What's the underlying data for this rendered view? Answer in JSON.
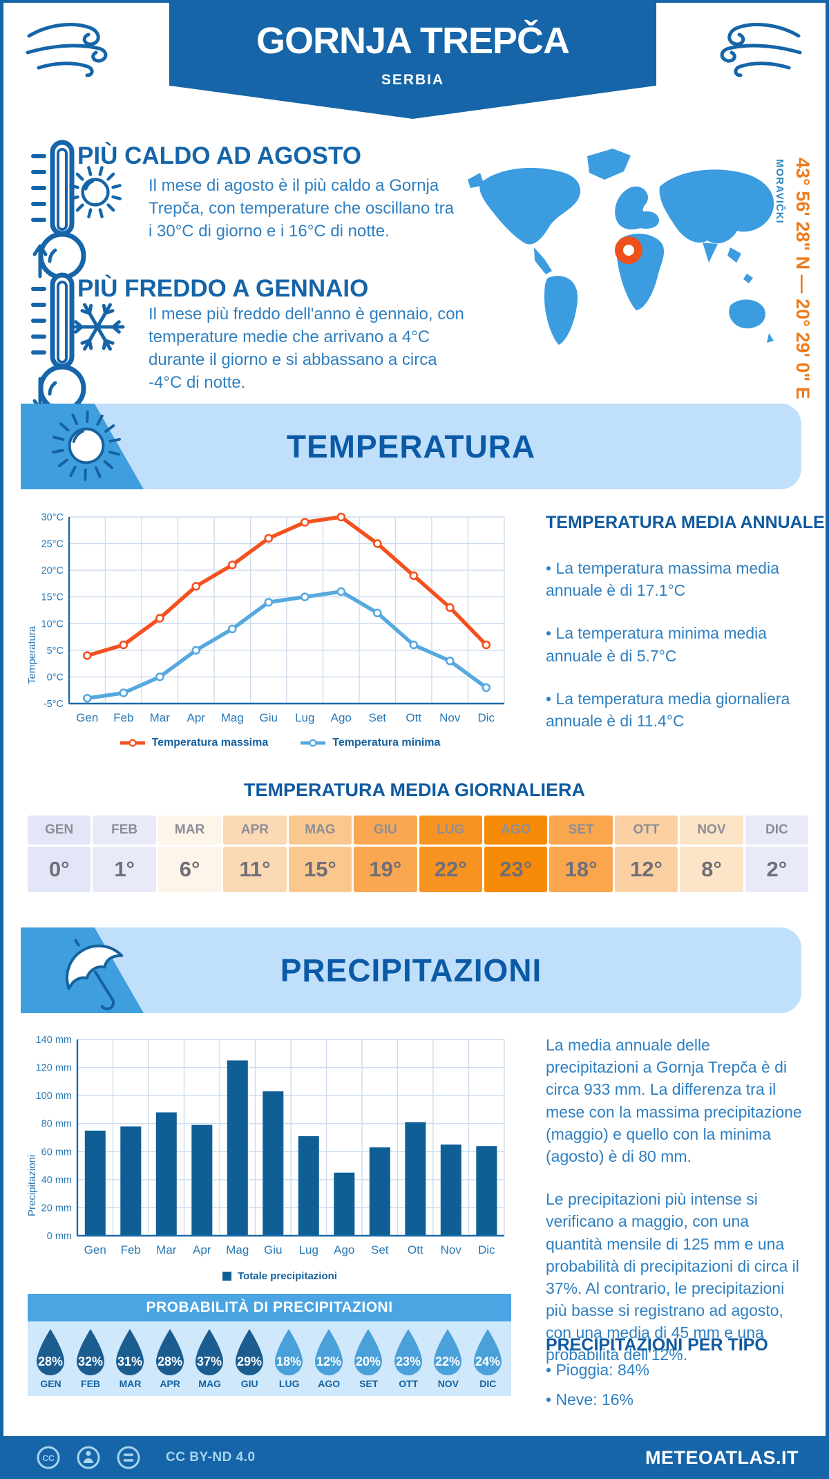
{
  "header": {
    "title": "GORNJA TREPČA",
    "subtitle": "SERBIA"
  },
  "coords": {
    "coordinates": "43° 56' 28\" N — 20° 29' 0\" E",
    "region": "MORAVIČKI"
  },
  "colors": {
    "dark_blue": "#1565a8",
    "medium_blue": "#3f9edd",
    "light_blue": "#bfdffb",
    "text_blue": "#2e7fc1",
    "orange_line": "#f4511e",
    "min_line": "#55a8e0",
    "bar_blue": "#0f5e96",
    "map_blue": "#3c9ce0",
    "marker_orange": "#f0501a",
    "coords_orange": "#ee7b1c",
    "drop_dark": "#1c5d90",
    "drop_light": "#4aa0d8",
    "prob_header": "#4aa5e2",
    "prob_body": "#cfe8fb"
  },
  "highlights": [
    {
      "title": "PIÙ CALDO AD AGOSTO",
      "text": "Il mese di agosto è il più caldo a Gornja Trepča, con temperature che oscillano tra i 30°C di giorno e i 16°C di notte.",
      "icon": "thermometer-up-sun"
    },
    {
      "title": "PIÙ FREDDO A GENNAIO",
      "text": "Il mese più freddo dell'anno è gennaio, con temperature medie che arrivano a 4°C durante il giorno e si abbassano a circa -4°C di notte.",
      "icon": "thermometer-down-snowflake"
    }
  ],
  "temperature_section": {
    "banner": "TEMPERATURA",
    "annual_heading": "TEMPERATURA MEDIA ANNUALE",
    "annual_bullets": [
      "• La temperatura massima media annuale è di 17.1°C",
      "• La temperatura minima media annuale è di 5.7°C",
      "• La temperatura media giornaliera annuale è di 11.4°C"
    ],
    "daily_heading": "TEMPERATURA MEDIA GIORNALIERA"
  },
  "temp_table": {
    "months": [
      "GEN",
      "FEB",
      "MAR",
      "APR",
      "MAG",
      "GIU",
      "LUG",
      "AGO",
      "SET",
      "OTT",
      "NOV",
      "DIC"
    ],
    "values": [
      "0°",
      "1°",
      "6°",
      "11°",
      "15°",
      "19°",
      "22°",
      "23°",
      "18°",
      "12°",
      "8°",
      "2°"
    ],
    "cell_colors": [
      "#e3e6f7",
      "#e8eaf9",
      "#fdf4ea",
      "#fbd9b4",
      "#fac88e",
      "#f9a750",
      "#f79320",
      "#f78a06",
      "#f9a64c",
      "#fbd0a2",
      "#fce4c8",
      "#e8eaf9"
    ]
  },
  "precipitation_section": {
    "banner": "PRECIPITAZIONI",
    "paragraphs": [
      "La media annuale delle precipitazioni a Gornja Trepča è di circa 933 mm. La differenza tra il mese con la massima precipitazione (maggio) e quello con la minima (agosto) è di 80 mm.",
      "Le precipitazioni più intense si verificano a maggio, con una quantità mensile di 125 mm e una probabilità di precipitazioni di circa il 37%. Al contrario, le precipitazioni più basse si registrano ad agosto, con una media di 45 mm e una probabilità dell'12%."
    ]
  },
  "chart_data": [
    {
      "type": "line",
      "title": "",
      "categories": [
        "Gen",
        "Feb",
        "Mar",
        "Apr",
        "Mag",
        "Giu",
        "Lug",
        "Ago",
        "Set",
        "Ott",
        "Nov",
        "Dic"
      ],
      "series": [
        {
          "name": "Temperatura massima",
          "color": "#f4511e",
          "values": [
            4,
            6,
            11,
            17,
            21,
            26,
            29,
            30,
            25,
            19,
            13,
            6
          ]
        },
        {
          "name": "Temperatura minima",
          "color": "#55a8e0",
          "values": [
            -4,
            -3,
            0,
            5,
            9,
            14,
            15,
            16,
            12,
            6,
            3,
            -2
          ]
        }
      ],
      "xlabel": "",
      "ylabel": "Temperatura",
      "ylim": [
        -5,
        30
      ],
      "ytick_step": 5,
      "ytick_suffix": "°C",
      "yticks": [
        "30°C",
        "25°C",
        "20°C",
        "15°C",
        "10°C",
        "5°C",
        "0°C",
        "-5°C"
      ],
      "grid": true,
      "legend_position": "bottom"
    },
    {
      "type": "bar",
      "title": "",
      "categories": [
        "Gen",
        "Feb",
        "Mar",
        "Apr",
        "Mag",
        "Giu",
        "Lug",
        "Ago",
        "Set",
        "Ott",
        "Nov",
        "Dic"
      ],
      "values": [
        75,
        78,
        88,
        79,
        125,
        103,
        71,
        45,
        63,
        81,
        65,
        64
      ],
      "series_name": "Totale precipitazioni",
      "xlabel": "",
      "ylabel": "Precipitazioni",
      "ylim": [
        0,
        140
      ],
      "ytick_step": 20,
      "ytick_suffix": " mm",
      "yticks": [
        "140 mm",
        "120 mm",
        "100 mm",
        "80 mm",
        "60 mm",
        "40 mm",
        "20 mm",
        "0 mm"
      ],
      "grid": true,
      "legend_position": "bottom",
      "bar_color": "#0f5e96"
    }
  ],
  "probability": {
    "title": "PROBABILITÀ DI PRECIPITAZIONI",
    "months": [
      "GEN",
      "FEB",
      "MAR",
      "APR",
      "MAG",
      "GIU",
      "LUG",
      "AGO",
      "SET",
      "OTT",
      "NOV",
      "DIC"
    ],
    "values": [
      "28%",
      "32%",
      "31%",
      "28%",
      "37%",
      "29%",
      "18%",
      "12%",
      "20%",
      "23%",
      "22%",
      "24%"
    ],
    "dark": [
      true,
      true,
      true,
      true,
      true,
      true,
      false,
      false,
      false,
      false,
      false,
      false
    ]
  },
  "precip_type": {
    "title": "PRECIPITAZIONI PER TIPO",
    "items": [
      "• Pioggia: 84%",
      "• Neve: 16%"
    ]
  },
  "footer": {
    "license": "CC BY-ND 4.0",
    "brand": "METEOATLAS.IT"
  }
}
